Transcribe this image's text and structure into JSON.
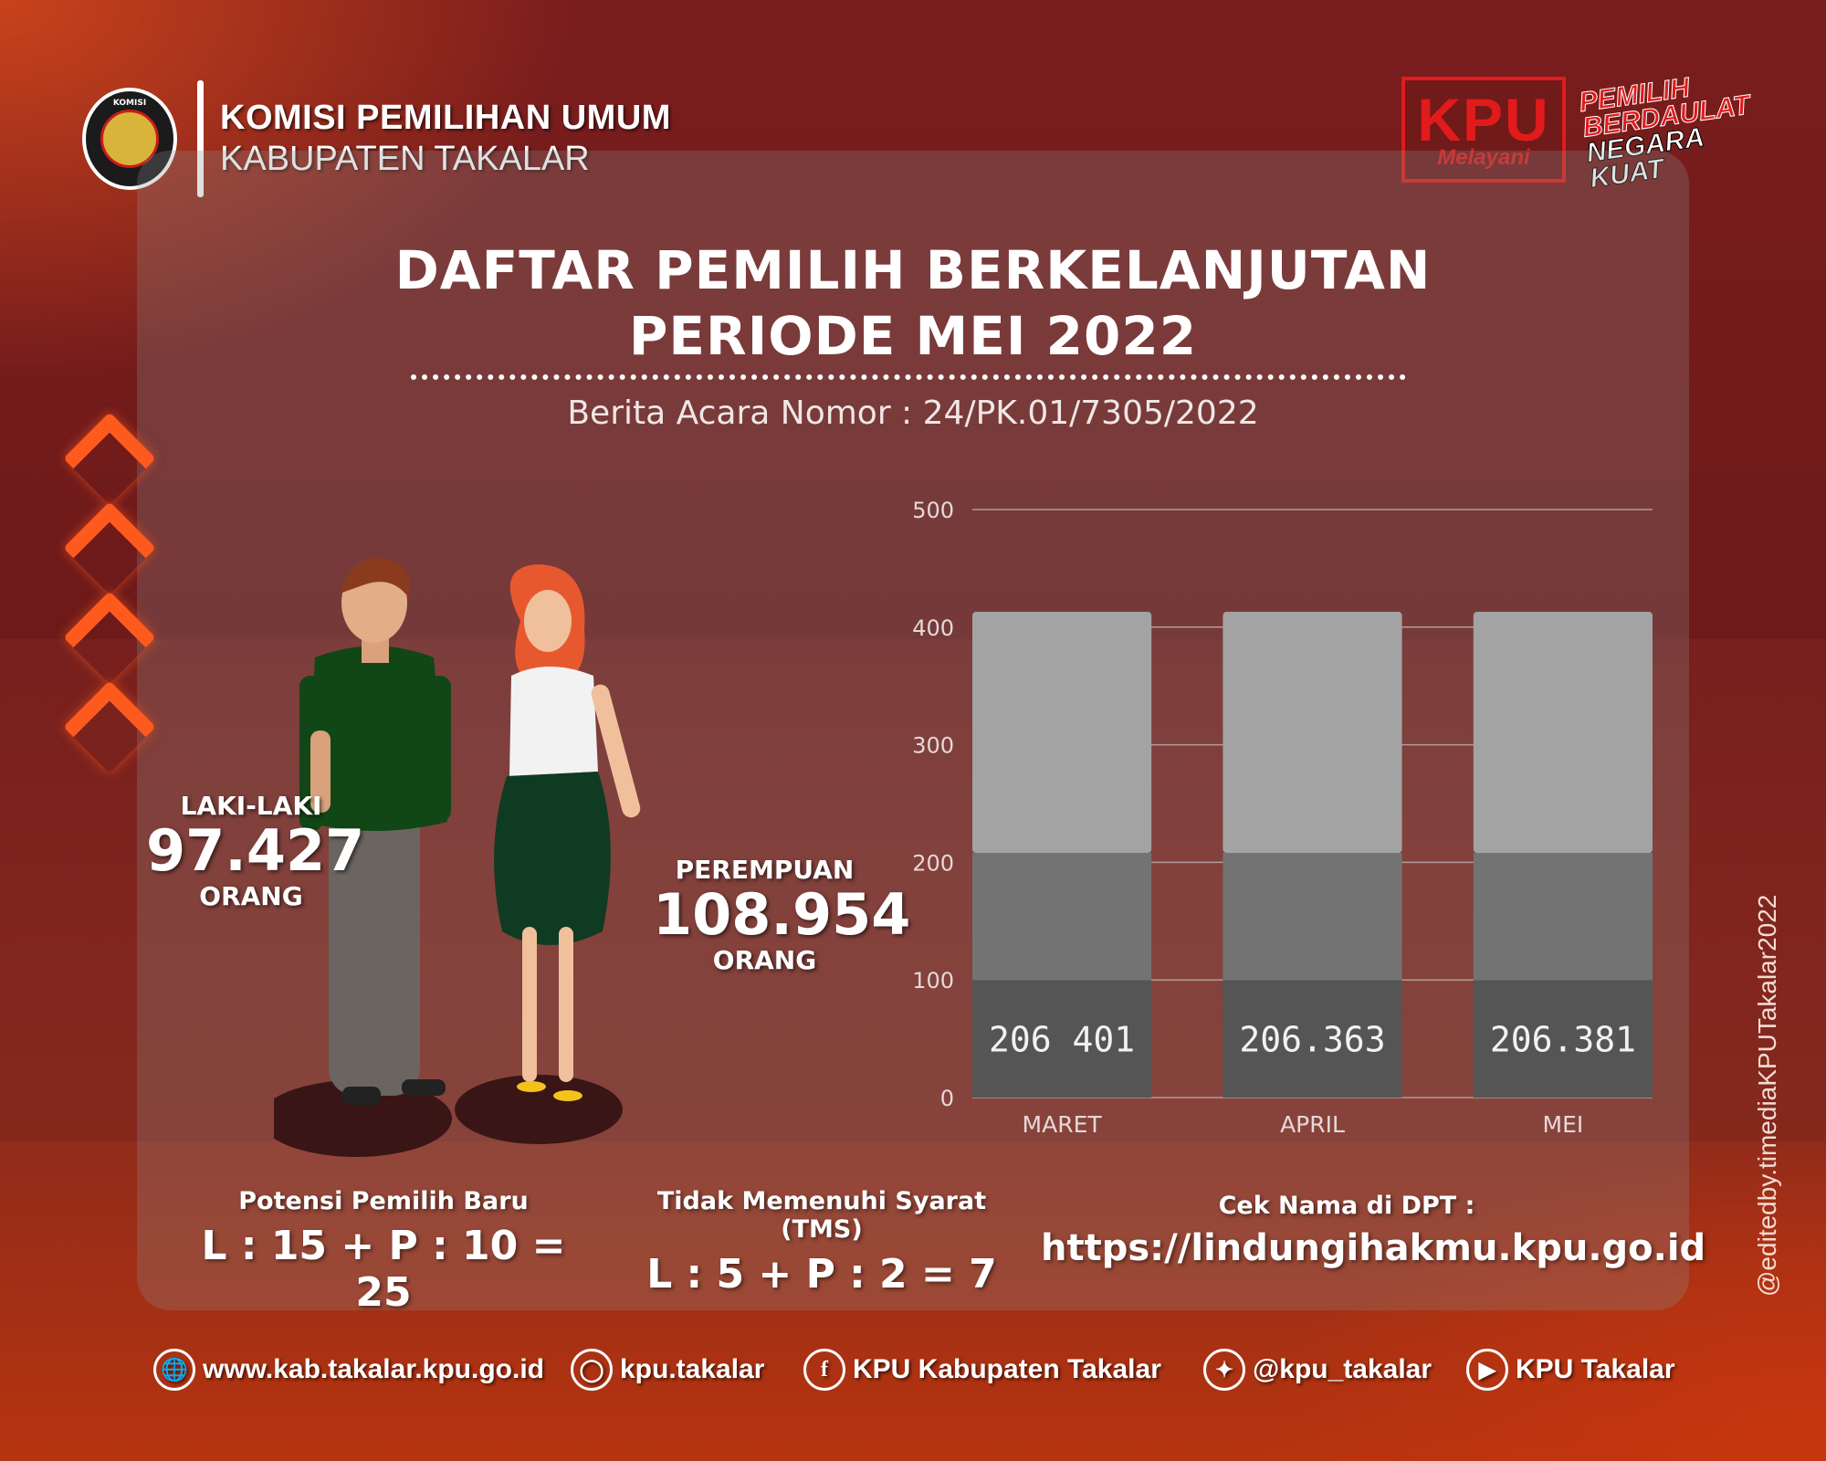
{
  "header": {
    "logo_text": "KOMISI",
    "org_line1": "KOMISI PEMILIHAN UMUM",
    "org_line2": "KABUPATEN TAKALAR"
  },
  "badge": {
    "kpu": "KPU",
    "melayani": "Melayani"
  },
  "slogan": {
    "line1": "PEMILIH",
    "line2": "BERDAULAT",
    "line3": "NEGARA",
    "line4": "KUAT"
  },
  "title": {
    "line1": "DAFTAR PEMILIH BERKELANJUTAN",
    "line2": "PERIODE MEI 2022",
    "subtitle": "Berita Acara Nomor : 24/PK.01/7305/2022"
  },
  "stats": {
    "male": {
      "label": "LAKI-LAKI",
      "value": "97.427",
      "unit": "ORANG"
    },
    "female": {
      "label": "PEREMPUAN",
      "value": "108.954",
      "unit": "ORANG"
    }
  },
  "chart_data": {
    "type": "bar",
    "categories": [
      "MARET",
      "APRIL",
      "MEI"
    ],
    "values": [
      413,
      413,
      413
    ],
    "segments": [
      100,
      208,
      413
    ],
    "data_labels": [
      "206 401",
      "206.363",
      "206.381"
    ],
    "ylim": [
      0,
      500
    ],
    "yticks": [
      "0",
      "100",
      "200",
      "300",
      "400",
      "500"
    ],
    "grid": true,
    "colors": {
      "top": "#a3a3a3",
      "mid": "#737373",
      "bottom": "#555555",
      "grid": "#b59a9a"
    }
  },
  "info": {
    "potensi": {
      "label": "Potensi Pemilih Baru",
      "value": "L : 15 + P : 10 = 25"
    },
    "tms": {
      "label": "Tidak Memenuhi Syarat (TMS)",
      "value": "L : 5 + P : 2 = 7"
    },
    "dpt": {
      "label": "Cek Nama di DPT :",
      "value": "https://lindungihakmu.kpu.go.id"
    }
  },
  "credit": "@editedby.timediaKPUTakalar2022",
  "footer": {
    "website": "www.kab.takalar.kpu.go.id",
    "instagram": "kpu.takalar",
    "facebook": "KPU Kabupaten Takalar",
    "twitter": "@kpu_takalar",
    "youtube": "KPU Takalar"
  }
}
